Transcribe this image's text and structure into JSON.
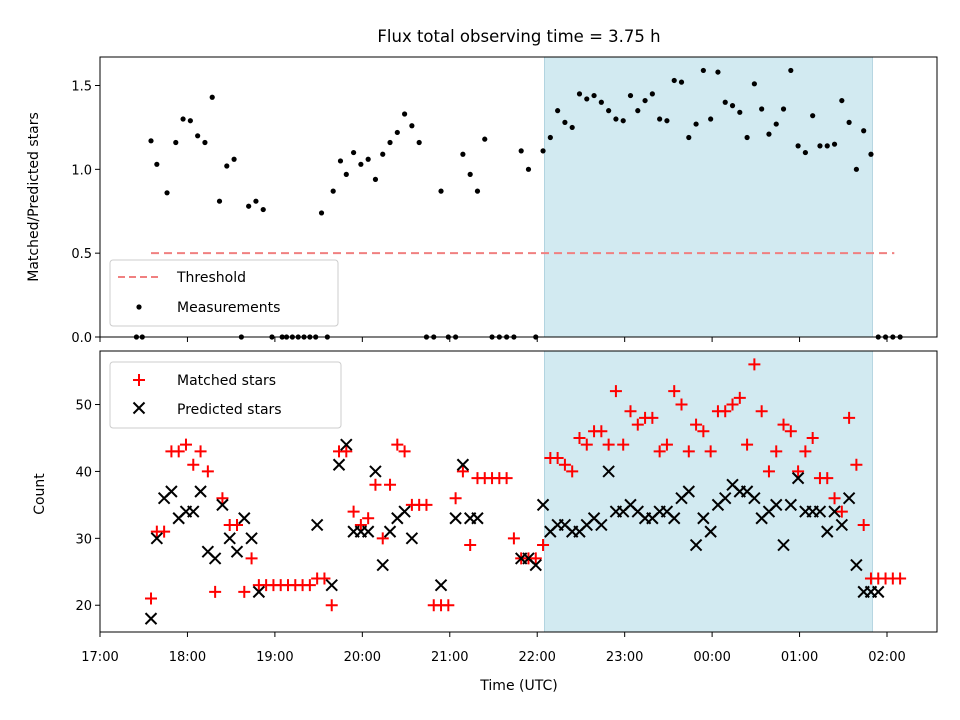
{
  "chart_data": [
    {
      "type": "scatter",
      "title": "Flux total observing time = 3.75 h",
      "xlabel": "",
      "ylabel": "Matched/Predicted stars",
      "xlim": [
        "17:00",
        "02:40"
      ],
      "ylim": [
        0,
        1.67
      ],
      "yticks": [
        "0.0",
        "0.5",
        "1.0",
        "1.5"
      ],
      "shaded_span": [
        "22:05",
        "01:50"
      ],
      "colors": {
        "shade": "#add8e6",
        "threshold": "#f08080",
        "measurements": "#000000"
      },
      "legend": {
        "location": "lower-left",
        "entries": [
          "Threshold",
          "Measurements"
        ]
      },
      "threshold": {
        "name": "Threshold",
        "value": 0.5,
        "x": [
          "17:35",
          "02:05"
        ]
      },
      "series": [
        {
          "name": "Measurements",
          "x": [
            "17:25",
            "17:29",
            "17:35",
            "17:39",
            "17:46",
            "17:52",
            "17:57",
            "18:02",
            "18:07",
            "18:12",
            "18:17",
            "18:22",
            "18:27",
            "18:32",
            "18:37",
            "18:42",
            "18:47",
            "18:52",
            "18:58",
            "19:05",
            "19:08",
            "19:12",
            "19:16",
            "19:20",
            "19:24",
            "19:28",
            "19:32",
            "19:36",
            "19:40",
            "19:45",
            "19:49",
            "19:54",
            "19:59",
            "20:04",
            "20:09",
            "20:14",
            "20:19",
            "20:24",
            "20:29",
            "20:34",
            "20:39",
            "20:44",
            "20:49",
            "20:54",
            "20:59",
            "21:04",
            "21:09",
            "21:14",
            "21:19",
            "21:24",
            "21:29",
            "21:34",
            "21:39",
            "21:44",
            "21:49",
            "21:54",
            "21:59",
            "22:04",
            "22:09",
            "22:14",
            "22:19",
            "22:24",
            "22:29",
            "22:34",
            "22:39",
            "22:44",
            "22:49",
            "22:54",
            "22:59",
            "23:04",
            "23:09",
            "23:14",
            "23:19",
            "23:24",
            "23:29",
            "23:34",
            "23:39",
            "23:44",
            "23:49",
            "23:54",
            "23:59",
            "00:04",
            "00:09",
            "00:14",
            "00:19",
            "00:24",
            "00:29",
            "00:34",
            "00:39",
            "00:44",
            "00:49",
            "00:54",
            "00:59",
            "01:04",
            "01:09",
            "01:14",
            "01:19",
            "01:24",
            "01:29",
            "01:34",
            "01:39",
            "01:44",
            "01:49",
            "01:54",
            "01:59",
            "02:04",
            "02:09"
          ],
          "y": [
            0,
            0,
            1.17,
            1.03,
            0.86,
            1.16,
            1.3,
            1.29,
            1.2,
            1.16,
            1.43,
            0.81,
            1.02,
            1.06,
            0,
            0.78,
            0.81,
            0.76,
            0,
            0,
            0,
            0,
            0,
            0,
            0,
            0,
            0.74,
            0,
            0.87,
            1.05,
            0.97,
            1.1,
            1.03,
            1.06,
            0.94,
            1.09,
            1.16,
            1.22,
            1.33,
            1.26,
            1.16,
            0,
            0,
            0.87,
            0,
            0,
            1.09,
            0.97,
            0.87,
            1.18,
            0,
            0,
            0,
            0,
            1.11,
            1.0,
            0,
            1.11,
            1.19,
            1.35,
            1.28,
            1.25,
            1.45,
            1.42,
            1.44,
            1.4,
            1.35,
            1.3,
            1.29,
            1.44,
            1.35,
            1.41,
            1.45,
            1.3,
            1.29,
            1.53,
            1.52,
            1.19,
            1.27,
            1.59,
            1.3,
            1.58,
            1.4,
            1.38,
            1.34,
            1.19,
            1.51,
            1.36,
            1.21,
            1.27,
            1.36,
            1.59,
            1.14,
            1.1,
            1.32,
            1.14,
            1.14,
            1.15,
            1.41,
            1.28,
            1.0,
            1.23,
            1.09,
            0,
            0,
            0,
            0
          ]
        }
      ]
    },
    {
      "type": "scatter",
      "xlabel": "Time (UTC)",
      "ylabel": "Count",
      "xlim": [
        "17:00",
        "02:40"
      ],
      "ylim": [
        16,
        58
      ],
      "xticks": [
        "17:00",
        "18:00",
        "19:00",
        "20:00",
        "21:00",
        "22:00",
        "23:00",
        "00:00",
        "01:00",
        "02:00"
      ],
      "yticks": [
        "20",
        "30",
        "40",
        "50"
      ],
      "shaded_span": [
        "22:05",
        "01:50"
      ],
      "colors": {
        "shade": "#add8e6",
        "matched": "#ff0000",
        "predicted": "#000000"
      },
      "legend": {
        "location": "upper-left",
        "entries": [
          "Matched stars",
          "Predicted stars"
        ]
      },
      "series": [
        {
          "name": "Matched stars",
          "marker": "plus",
          "x": [
            "17:35",
            "17:39",
            "17:44",
            "17:49",
            "17:54",
            "17:59",
            "18:04",
            "18:09",
            "18:14",
            "18:19",
            "18:24",
            "18:29",
            "18:34",
            "18:39",
            "18:44",
            "18:49",
            "18:54",
            "18:59",
            "19:04",
            "19:09",
            "19:14",
            "19:19",
            "19:24",
            "19:29",
            "19:34",
            "19:39",
            "19:44",
            "19:49",
            "19:54",
            "19:59",
            "20:04",
            "20:09",
            "20:14",
            "20:19",
            "20:24",
            "20:29",
            "20:34",
            "20:39",
            "20:44",
            "20:49",
            "20:54",
            "20:59",
            "21:04",
            "21:09",
            "21:14",
            "21:19",
            "21:24",
            "21:29",
            "21:34",
            "21:39",
            "21:44",
            "21:49",
            "21:54",
            "21:59",
            "22:04",
            "22:09",
            "22:14",
            "22:19",
            "22:24",
            "22:29",
            "22:34",
            "22:39",
            "22:44",
            "22:49",
            "22:54",
            "22:59",
            "23:04",
            "23:09",
            "23:14",
            "23:19",
            "23:24",
            "23:29",
            "23:34",
            "23:39",
            "23:44",
            "23:49",
            "23:54",
            "23:59",
            "00:04",
            "00:09",
            "00:14",
            "00:19",
            "00:24",
            "00:29",
            "00:34",
            "00:39",
            "00:44",
            "00:49",
            "00:54",
            "00:59",
            "01:04",
            "01:09",
            "01:14",
            "01:19",
            "01:24",
            "01:29",
            "01:34",
            "01:39",
            "01:44",
            "01:49",
            "01:54",
            "01:59",
            "02:04",
            "02:09"
          ],
          "y": [
            21,
            31,
            31,
            43,
            43,
            44,
            41,
            43,
            40,
            22,
            36,
            32,
            32,
            22,
            27,
            23,
            23,
            23,
            23,
            23,
            23,
            23,
            23,
            24,
            24,
            20,
            43,
            43,
            34,
            32,
            33,
            38,
            30,
            38,
            44,
            43,
            35,
            35,
            35,
            20,
            20,
            20,
            36,
            40,
            29,
            39,
            39,
            39,
            39,
            39,
            30,
            27,
            27,
            27,
            29,
            42,
            42,
            41,
            40,
            45,
            44,
            46,
            46,
            44,
            52,
            44,
            49,
            47,
            48,
            48,
            43,
            44,
            52,
            50,
            43,
            47,
            46,
            43,
            49,
            49,
            50,
            51,
            44,
            56,
            49,
            40,
            43,
            47,
            46,
            40,
            43,
            45,
            39,
            39,
            36,
            34,
            48,
            41,
            32,
            24,
            24,
            24,
            24,
            24
          ]
        },
        {
          "name": "Predicted stars",
          "marker": "x",
          "x": [
            "17:35",
            "17:39",
            "17:44",
            "17:49",
            "17:54",
            "17:59",
            "18:04",
            "18:09",
            "18:14",
            "18:19",
            "18:24",
            "18:29",
            "18:34",
            "18:39",
            "18:44",
            "18:49",
            "19:29",
            "19:39",
            "19:44",
            "19:49",
            "19:54",
            "19:59",
            "20:04",
            "20:09",
            "20:14",
            "20:19",
            "20:24",
            "20:29",
            "20:34",
            "20:54",
            "21:04",
            "21:09",
            "21:14",
            "21:19",
            "21:49",
            "21:54",
            "21:59",
            "22:04",
            "22:09",
            "22:14",
            "22:19",
            "22:24",
            "22:29",
            "22:34",
            "22:39",
            "22:44",
            "22:49",
            "22:54",
            "22:59",
            "23:04",
            "23:09",
            "23:14",
            "23:19",
            "23:24",
            "23:29",
            "23:34",
            "23:39",
            "23:44",
            "23:49",
            "23:54",
            "23:59",
            "00:04",
            "00:09",
            "00:14",
            "00:19",
            "00:24",
            "00:29",
            "00:34",
            "00:39",
            "00:44",
            "00:49",
            "00:54",
            "00:59",
            "01:04",
            "01:09",
            "01:14",
            "01:19",
            "01:24",
            "01:29",
            "01:34",
            "01:39",
            "01:44",
            "01:49",
            "01:54"
          ],
          "y": [
            18,
            30,
            36,
            37,
            33,
            34,
            34,
            37,
            28,
            27,
            35,
            30,
            28,
            33,
            30,
            22,
            32,
            23,
            41,
            44,
            31,
            31,
            31,
            40,
            26,
            31,
            33,
            34,
            30,
            23,
            33,
            41,
            33,
            33,
            27,
            27,
            26,
            35,
            31,
            32,
            32,
            31,
            31,
            32,
            33,
            32,
            40,
            34,
            34,
            35,
            34,
            33,
            33,
            34,
            34,
            33,
            36,
            37,
            29,
            33,
            31,
            35,
            36,
            38,
            37,
            37,
            36,
            33,
            34,
            35,
            29,
            35,
            39,
            34,
            34,
            34,
            31,
            34,
            32,
            36,
            26,
            22,
            22,
            22
          ]
        }
      ]
    }
  ]
}
